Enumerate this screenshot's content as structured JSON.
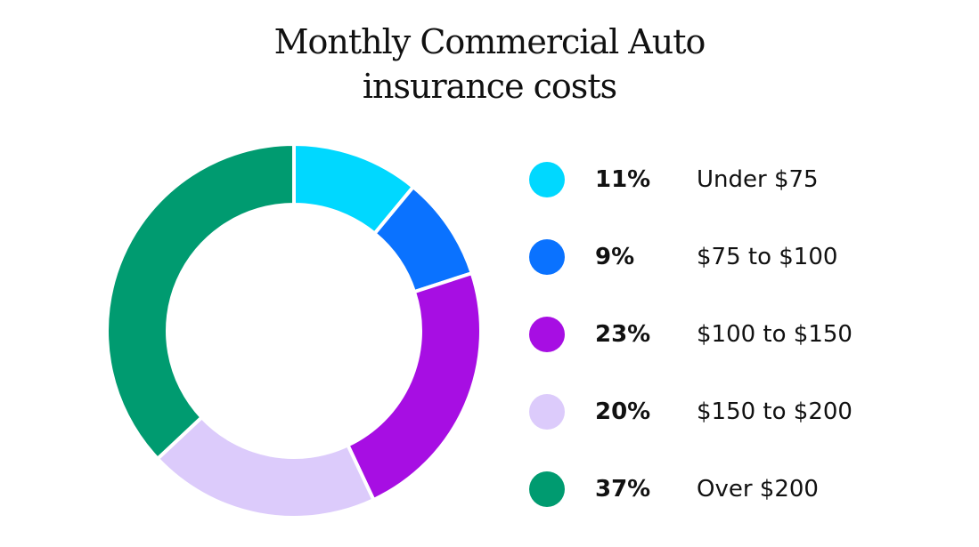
{
  "chart_data": {
    "type": "pie",
    "title_lines": [
      "Monthly Commercial Auto",
      "insurance costs"
    ],
    "slices": [
      {
        "pct_label": "11%",
        "value": 11,
        "label": "Under $75",
        "color": "#00d8ff"
      },
      {
        "pct_label": "9%",
        "value": 9,
        "label": "$75 to $100",
        "color": "#0a72ff"
      },
      {
        "pct_label": "23%",
        "value": 23,
        "label": "$100 to $150",
        "color": "#a70ee3"
      },
      {
        "pct_label": "20%",
        "value": 20,
        "label": "$150 to $200",
        "color": "#dccbfb"
      },
      {
        "pct_label": "37%",
        "value": 37,
        "label": "Over $200",
        "color": "#009b70"
      }
    ],
    "donut": true,
    "legend_position": "right"
  }
}
